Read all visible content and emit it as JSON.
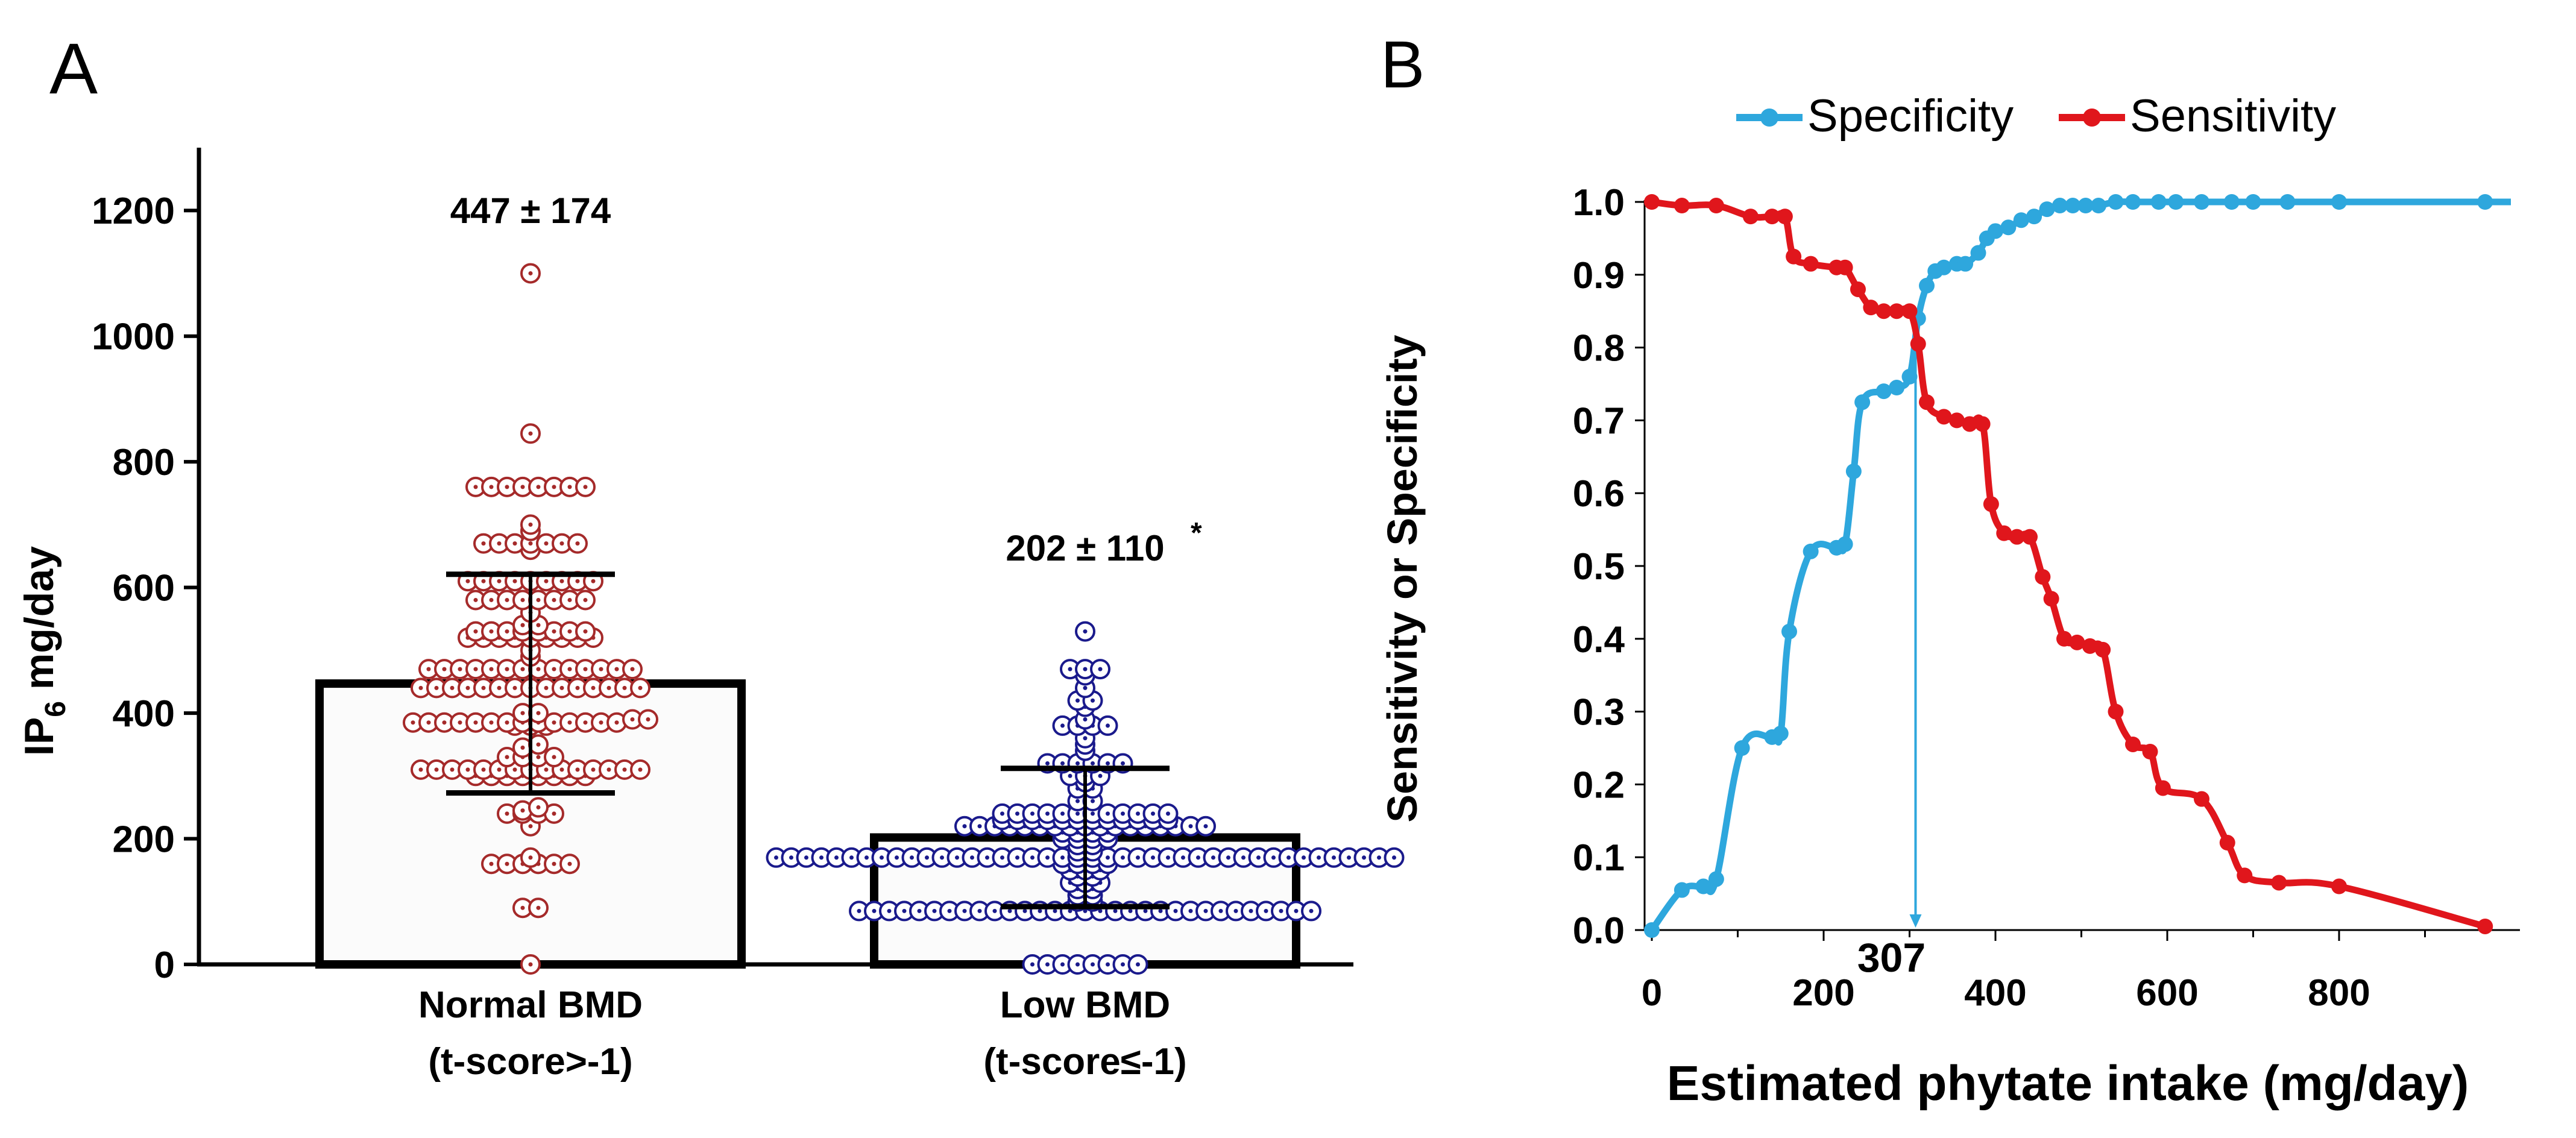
{
  "colors": {
    "normal": "#a52a2a",
    "low": "#1a1a8c",
    "specificity": "#2ea7dd",
    "sensitivity": "#e0161c",
    "axis": "#000000"
  },
  "panel_a": {
    "label": "A",
    "mean_labels": [
      "447 ± 174",
      "202 ± 110"
    ],
    "significance_mark": "*"
  },
  "panel_b": {
    "label": "B",
    "cutoff_label": "307"
  },
  "chart_data": [
    {
      "type": "bar",
      "title": "",
      "ylabel": "IP6 mg/day",
      "ylabel_main": "IP",
      "ylabel_sub": "6",
      "ylabel_rest": " mg/day",
      "xlabel": "",
      "ylim": [
        0,
        1300
      ],
      "yticks": [
        0,
        200,
        400,
        600,
        800,
        1000,
        1200
      ],
      "categories": [
        "Normal BMD",
        "Low BMD"
      ],
      "category_sublabels": [
        "(t-score>-1)",
        "(t-score≤-1)"
      ],
      "means": [
        447,
        202
      ],
      "sd": [
        174,
        110
      ],
      "individual_points": true,
      "normal_points": [
        0,
        90,
        90,
        160,
        160,
        160,
        160,
        160,
        160,
        170,
        220,
        240,
        240,
        240,
        240,
        245,
        250,
        300,
        300,
        300,
        300,
        300,
        300,
        300,
        300,
        310,
        310,
        310,
        310,
        310,
        310,
        310,
        310,
        310,
        310,
        310,
        310,
        310,
        310,
        310,
        330,
        330,
        330,
        330,
        345,
        350,
        380,
        380,
        380,
        385,
        385,
        385,
        385,
        385,
        385,
        385,
        385,
        385,
        385,
        385,
        385,
        385,
        385,
        390,
        390,
        400,
        400,
        440,
        440,
        440,
        440,
        440,
        440,
        440,
        440,
        440,
        440,
        440,
        440,
        440,
        440,
        440,
        470,
        470,
        470,
        470,
        470,
        470,
        470,
        470,
        470,
        470,
        470,
        470,
        470,
        470,
        490,
        500,
        520,
        520,
        520,
        520,
        520,
        520,
        520,
        520,
        520,
        530,
        530,
        530,
        530,
        530,
        530,
        530,
        530,
        540,
        540,
        560,
        580,
        580,
        580,
        580,
        580,
        580,
        580,
        580,
        610,
        610,
        610,
        610,
        610,
        610,
        610,
        610,
        610,
        660,
        670,
        670,
        670,
        670,
        670,
        670,
        670,
        690,
        700,
        760,
        760,
        760,
        760,
        760,
        760,
        760,
        760,
        845,
        1100
      ],
      "low_points": [
        0,
        0,
        0,
        0,
        0,
        0,
        0,
        0,
        85,
        85,
        85,
        85,
        85,
        85,
        85,
        85,
        85,
        85,
        85,
        85,
        85,
        85,
        85,
        85,
        85,
        85,
        85,
        85,
        85,
        85,
        85,
        85,
        85,
        85,
        85,
        85,
        85,
        85,
        85,
        100,
        100,
        110,
        110,
        120,
        120,
        130,
        130,
        130,
        140,
        140,
        150,
        150,
        150,
        160,
        160,
        160,
        160,
        170,
        170,
        170,
        170,
        170,
        170,
        170,
        170,
        170,
        170,
        170,
        170,
        170,
        170,
        170,
        170,
        170,
        170,
        170,
        170,
        170,
        170,
        170,
        170,
        170,
        170,
        170,
        170,
        170,
        170,
        170,
        170,
        170,
        170,
        170,
        170,
        170,
        170,
        170,
        170,
        170,
        170,
        180,
        180,
        190,
        190,
        200,
        200,
        200,
        200,
        210,
        210,
        210,
        210,
        220,
        220,
        220,
        220,
        220,
        220,
        220,
        220,
        220,
        220,
        220,
        220,
        220,
        220,
        220,
        220,
        220,
        230,
        230,
        230,
        230,
        230,
        230,
        230,
        230,
        230,
        230,
        230,
        230,
        240,
        240,
        240,
        240,
        240,
        240,
        240,
        240,
        240,
        240,
        240,
        240,
        260,
        260,
        280,
        280,
        290,
        300,
        300,
        300,
        320,
        320,
        320,
        320,
        320,
        320,
        340,
        350,
        360,
        380,
        380,
        380,
        380,
        390,
        410,
        420,
        420,
        440,
        460,
        470,
        470,
        470,
        530
      ]
    },
    {
      "type": "line",
      "title": "",
      "xlabel": "Estimated phytate intake (mg/day)",
      "ylabel": "Sensitivity or Specificity",
      "xlim": [
        0,
        1000
      ],
      "ylim": [
        0,
        1
      ],
      "xticks": [
        0,
        200,
        400,
        600,
        800
      ],
      "yticks": [
        "0.0",
        "0.1",
        "0.2",
        "0.3",
        "0.4",
        "0.5",
        "0.6",
        "0.7",
        "0.8",
        "0.9",
        "1.0"
      ],
      "legend_position": "top",
      "cutoff_x": 307,
      "series": [
        {
          "name": "Specificity",
          "color": "#2ea7dd",
          "x": [
            0,
            35,
            60,
            75,
            105,
            140,
            150,
            160,
            185,
            215,
            225,
            235,
            245,
            270,
            285,
            300,
            310,
            320,
            330,
            340,
            355,
            365,
            380,
            390,
            400,
            415,
            430,
            445,
            460,
            475,
            490,
            505,
            520,
            540,
            560,
            590,
            610,
            640,
            675,
            700,
            740,
            800,
            970
          ],
          "values": [
            0,
            0.055,
            0.06,
            0.07,
            0.25,
            0.265,
            0.27,
            0.41,
            0.52,
            0.525,
            0.53,
            0.63,
            0.725,
            0.74,
            0.745,
            0.76,
            0.84,
            0.885,
            0.905,
            0.91,
            0.915,
            0.915,
            0.93,
            0.95,
            0.96,
            0.965,
            0.975,
            0.98,
            0.99,
            0.995,
            0.995,
            0.995,
            0.995,
            1.0,
            1.0,
            1.0,
            1.0,
            1.0,
            1.0,
            1.0,
            1.0,
            1.0,
            1.0
          ]
        },
        {
          "name": "Sensitivity",
          "color": "#e0161c",
          "x": [
            0,
            35,
            75,
            115,
            140,
            155,
            165,
            185,
            215,
            225,
            240,
            255,
            270,
            285,
            300,
            310,
            320,
            340,
            355,
            370,
            385,
            395,
            410,
            425,
            440,
            455,
            465,
            480,
            495,
            510,
            525,
            540,
            560,
            580,
            595,
            640,
            670,
            690,
            730,
            800,
            970
          ],
          "values": [
            1.0,
            0.995,
            0.995,
            0.98,
            0.98,
            0.98,
            0.925,
            0.915,
            0.91,
            0.91,
            0.88,
            0.855,
            0.85,
            0.85,
            0.85,
            0.805,
            0.725,
            0.705,
            0.7,
            0.695,
            0.695,
            0.585,
            0.545,
            0.54,
            0.54,
            0.485,
            0.455,
            0.4,
            0.395,
            0.39,
            0.385,
            0.3,
            0.255,
            0.245,
            0.195,
            0.18,
            0.12,
            0.075,
            0.065,
            0.06,
            0.005
          ]
        }
      ]
    }
  ]
}
